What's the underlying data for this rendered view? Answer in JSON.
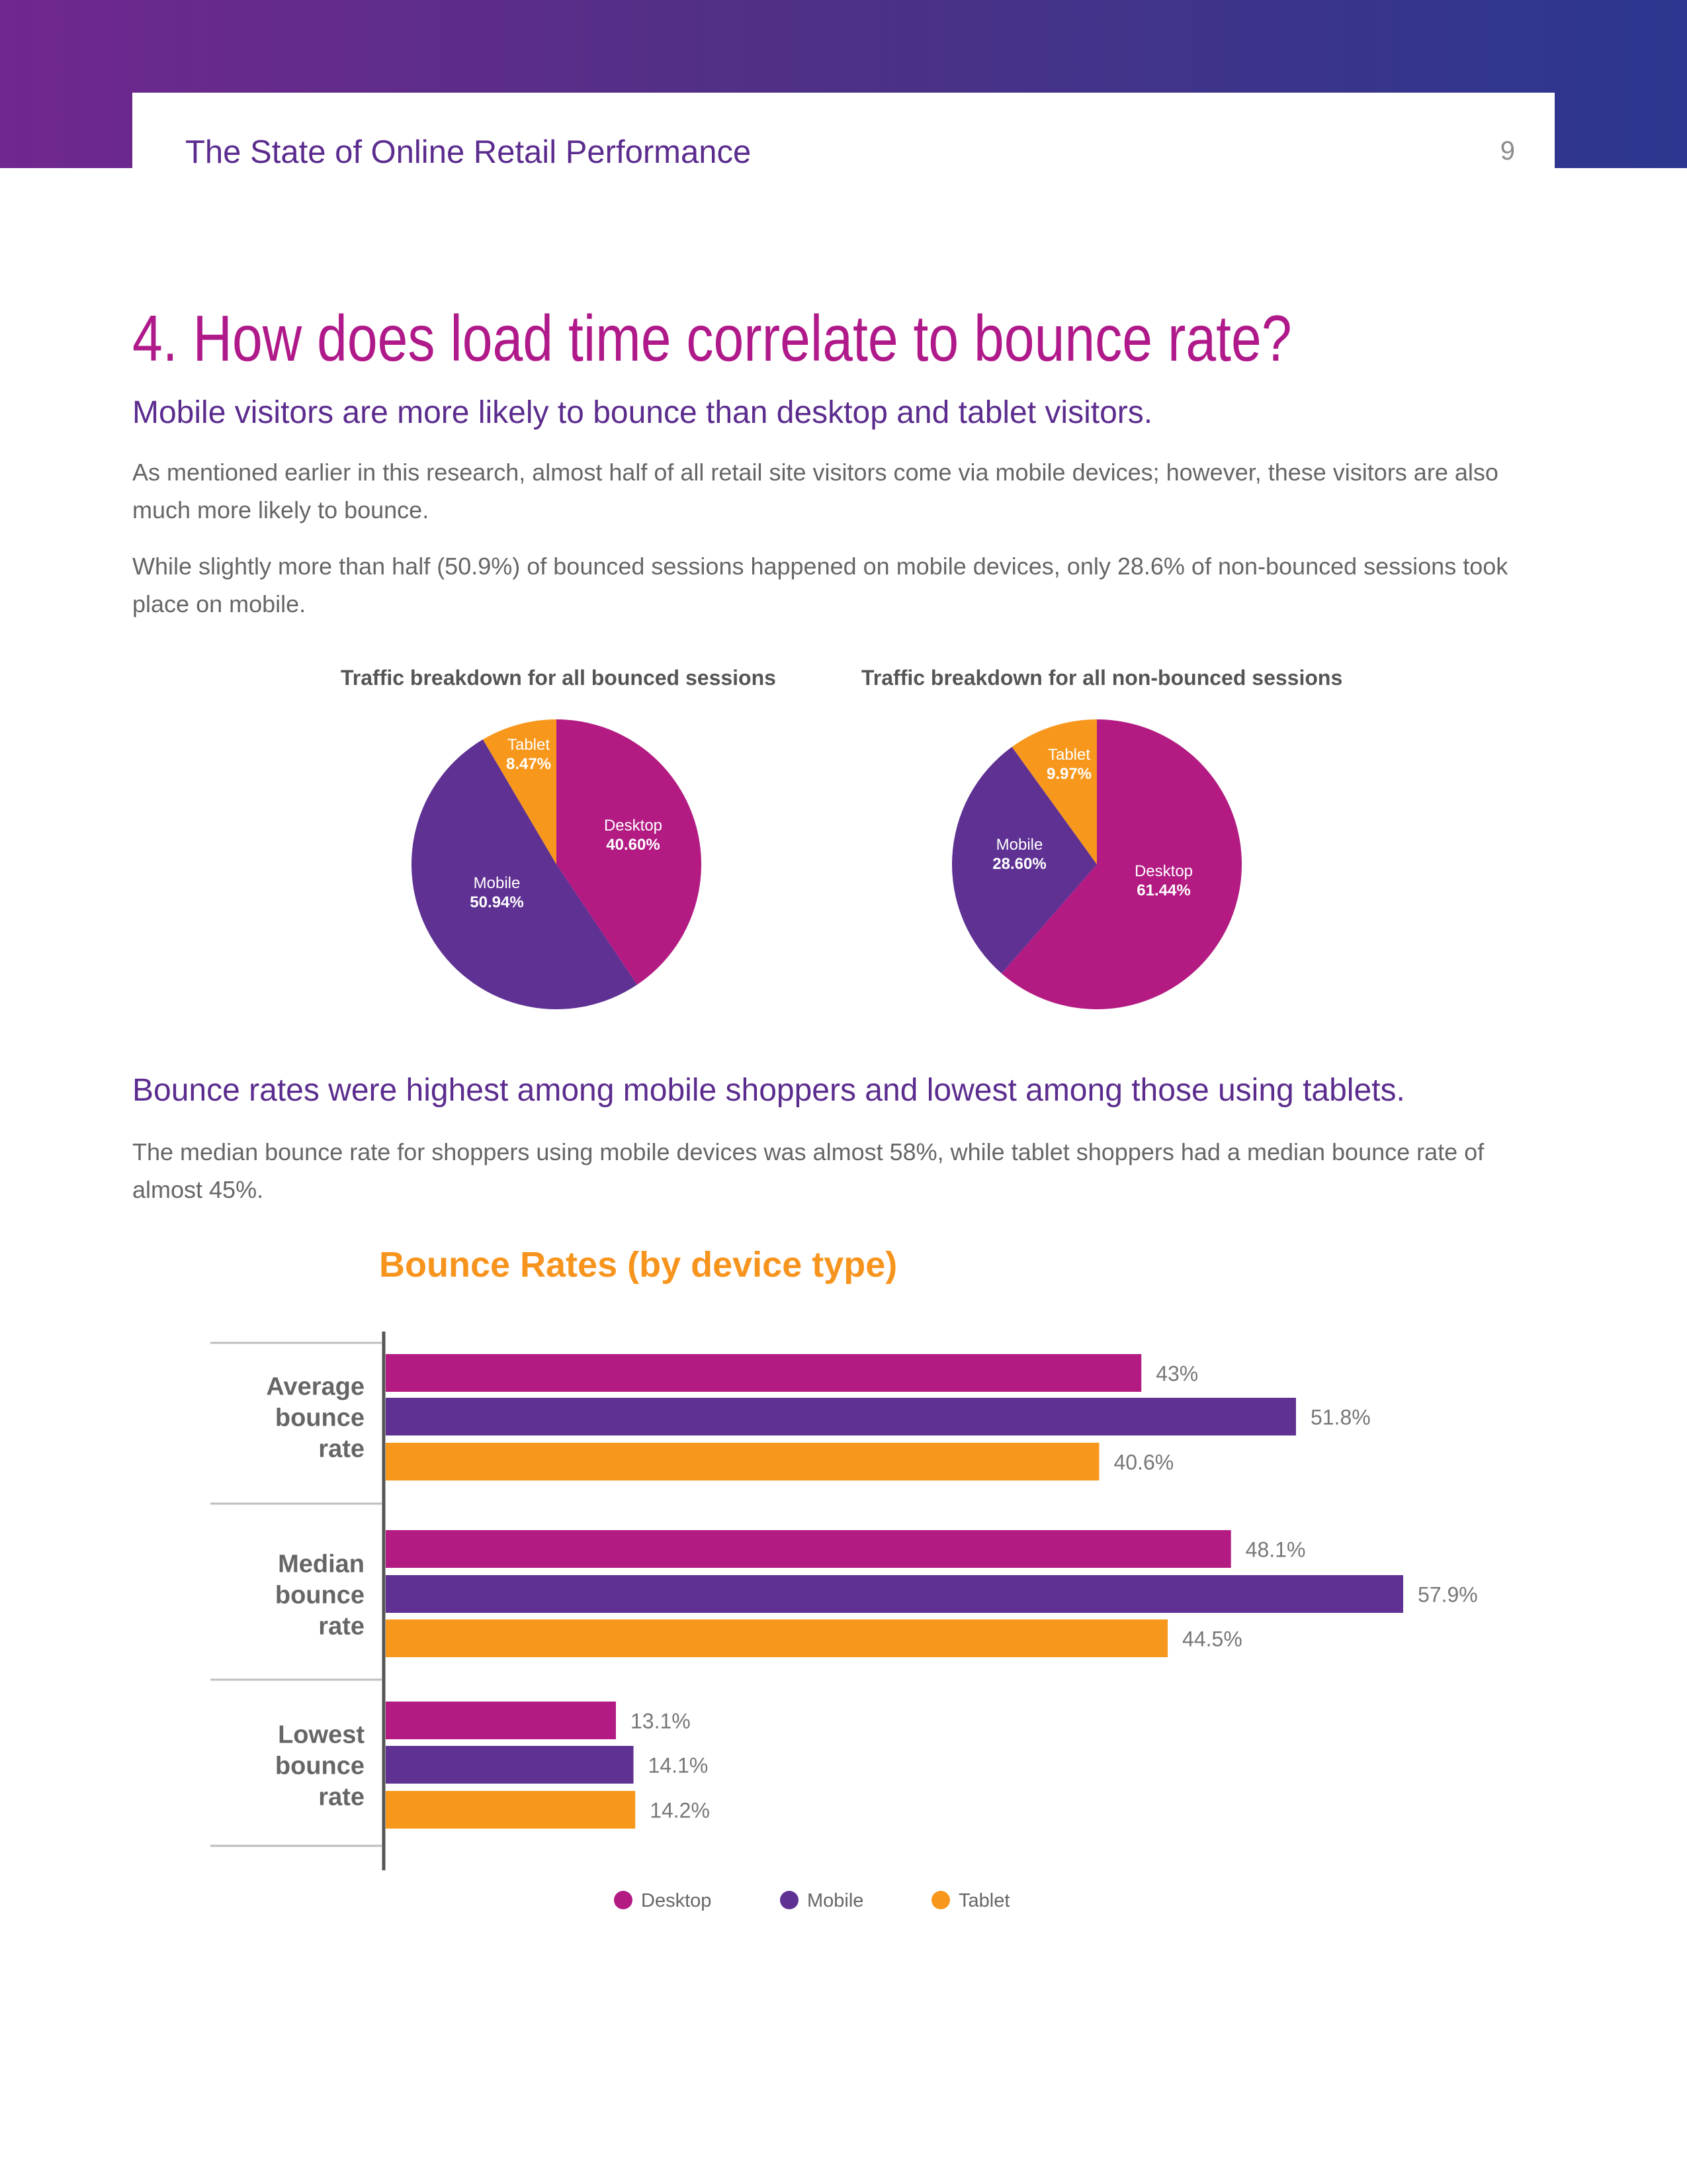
{
  "header": {
    "title": "The State of Online Retail Performance",
    "page_number": "9"
  },
  "section": {
    "heading": "4. How does load time correlate to bounce rate?",
    "subheading1": "Mobile visitors are more likely to bounce than desktop and tablet visitors.",
    "para1": "As mentioned earlier in this research, almost half of all retail site visitors come via mobile devices; however, these visitors are also much more likely to bounce.",
    "para2": "While slightly more than half (50.9%) of bounced sessions happened on mobile devices, only 28.6% of non-bounced sessions took place on mobile.",
    "subheading2": "Bounce rates were highest among mobile shoppers and lowest among those using tablets.",
    "para3": "The median bounce rate for shoppers using mobile devices was almost 58%, while tablet shoppers had a median bounce rate of almost 45%."
  },
  "colors": {
    "desktop": "#b31b83",
    "mobile": "#5e3193",
    "tablet": "#f7981d"
  },
  "chart_data": [
    {
      "type": "pie",
      "title": "Traffic breakdown for all bounced sessions",
      "slices": [
        {
          "label": "Desktop",
          "value": 40.6,
          "display": "40.60%"
        },
        {
          "label": "Mobile",
          "value": 50.94,
          "display": "50.94%"
        },
        {
          "label": "Tablet",
          "value": 8.47,
          "display": "8.47%"
        }
      ]
    },
    {
      "type": "pie",
      "title": "Traffic breakdown for all non-bounced sessions",
      "slices": [
        {
          "label": "Desktop",
          "value": 61.44,
          "display": "61.44%"
        },
        {
          "label": "Mobile",
          "value": 28.6,
          "display": "28.60%"
        },
        {
          "label": "Tablet",
          "value": 9.97,
          "display": "9.97%"
        }
      ]
    },
    {
      "type": "bar",
      "orientation": "horizontal",
      "title": "Bounce Rates (by device type)",
      "categories": [
        "Average bounce rate",
        "Median bounce rate",
        "Lowest bounce rate"
      ],
      "category_lines": [
        [
          "Average",
          "bounce",
          "rate"
        ],
        [
          "Median",
          "bounce",
          "rate"
        ],
        [
          "Lowest",
          "bounce",
          "rate"
        ]
      ],
      "series": [
        {
          "name": "Desktop",
          "values": [
            43,
            48.1,
            13.1
          ],
          "labels": [
            "43%",
            "48.1%",
            "13.1%"
          ]
        },
        {
          "name": "Mobile",
          "values": [
            51.8,
            57.9,
            14.1
          ],
          "labels": [
            "51.8%",
            "57.9%",
            "14.1%"
          ]
        },
        {
          "name": "Tablet",
          "values": [
            40.6,
            44.5,
            14.2
          ],
          "labels": [
            "40.6%",
            "44.5%",
            "14.2%"
          ]
        }
      ],
      "xlim": [
        0,
        60
      ],
      "legend": [
        "Desktop",
        "Mobile",
        "Tablet"
      ],
      "legend_position": "bottom"
    }
  ]
}
